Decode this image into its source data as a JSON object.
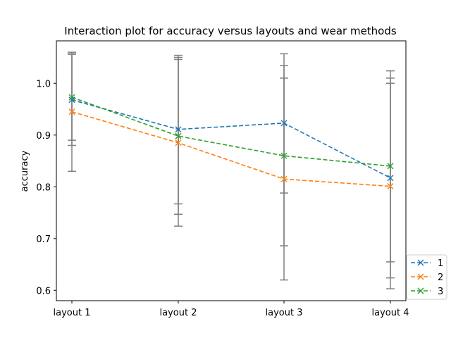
{
  "chart_data": {
    "type": "line",
    "title": "Interaction plot for accuracy versus layouts and wear methods",
    "xlabel": "",
    "ylabel": "accuracy",
    "categories": [
      "layout 1",
      "layout 2",
      "layout 3",
      "layout 4"
    ],
    "ylim": [
      0.58,
      1.082
    ],
    "yticks": [
      0.6,
      0.7,
      0.8,
      0.9,
      1.0
    ],
    "ytick_labels": [
      "0.6",
      "0.7",
      "0.8",
      "0.9",
      "1.0"
    ],
    "errorbar_color": "#808080",
    "legend_location": "lower-right (outside axes)",
    "series": [
      {
        "name": "1",
        "color": "#1f77b4",
        "values": [
          0.968,
          0.911,
          0.923,
          0.817
        ],
        "err_low": [
          0.88,
          0.767,
          0.788,
          0.624
        ],
        "err_high": [
          1.057,
          1.054,
          1.057,
          1.01
        ]
      },
      {
        "name": "2",
        "color": "#ff7f0e",
        "values": [
          0.945,
          0.885,
          0.815,
          0.801
        ],
        "err_low": [
          0.83,
          0.724,
          0.62,
          0.603
        ],
        "err_high": [
          1.06,
          1.046,
          1.01,
          1.0
        ]
      },
      {
        "name": "3",
        "color": "#2ca02c",
        "values": [
          0.973,
          0.898,
          0.86,
          0.84
        ],
        "err_low": [
          0.89,
          0.747,
          0.686,
          0.655
        ],
        "err_high": [
          1.056,
          1.05,
          1.034,
          1.024
        ]
      }
    ]
  }
}
